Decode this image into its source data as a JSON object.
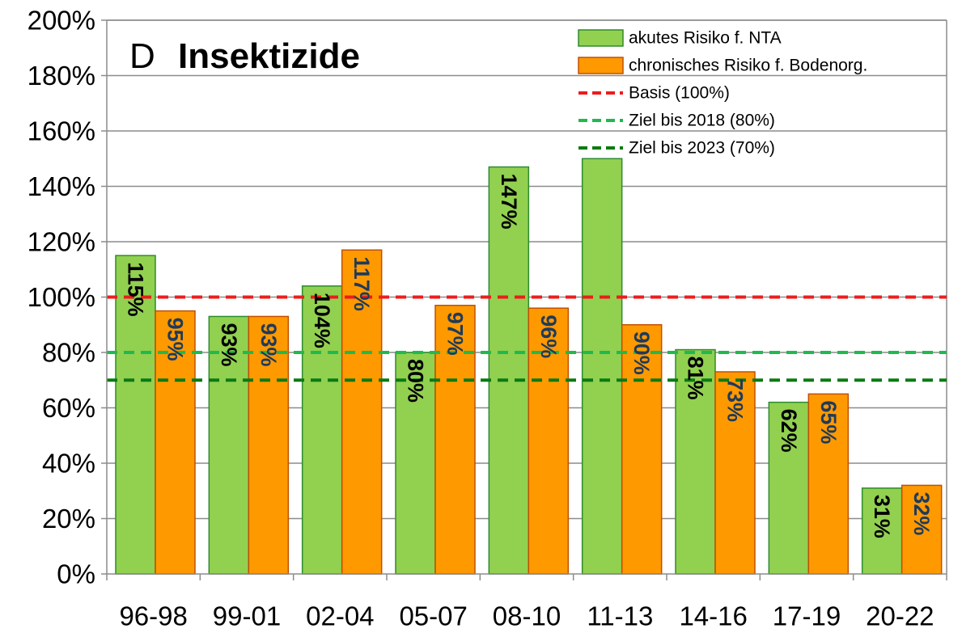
{
  "chart_data": {
    "type": "bar",
    "title_letter": "D",
    "title": "Insektizide",
    "categories": [
      "96-98",
      "99-01",
      "02-04",
      "05-07",
      "08-10",
      "11-13",
      "14-16",
      "17-19",
      "20-22"
    ],
    "series": [
      {
        "name": "akutes Risiko f. NTA",
        "color": "#92d050",
        "edge_color": "#2e8b2e",
        "values": [
          115,
          93,
          104,
          80,
          147,
          150,
          81,
          62,
          31
        ],
        "labels": [
          "115%",
          "93%",
          "104%",
          "80%",
          "147%",
          "",
          "81%",
          "62%",
          "31%"
        ]
      },
      {
        "name": "chronisches Risiko f. Bodenorg.",
        "color": "#ff9900",
        "edge_color": "#c05000",
        "values": [
          95,
          93,
          117,
          97,
          96,
          90,
          73,
          65,
          32
        ],
        "labels": [
          "95%",
          "93%",
          "117%",
          "97%",
          "96%",
          "90%",
          "73%",
          "65%",
          "32%"
        ]
      }
    ],
    "reference_lines": [
      {
        "name": "Basis (100%)",
        "value": 100,
        "color": "#ee1c1c"
      },
      {
        "name": "Ziel bis 2018 (80%)",
        "value": 80,
        "color": "#1fba4e"
      },
      {
        "name": "Ziel bis 2023 (70%)",
        "value": 70,
        "color": "#0a7a12"
      }
    ],
    "yaxis": {
      "min": 0,
      "max": 200,
      "ticks": [
        0,
        20,
        40,
        60,
        80,
        100,
        120,
        140,
        160,
        180,
        200
      ],
      "tick_labels": [
        "0%",
        "20%",
        "40%",
        "60%",
        "80%",
        "100%",
        "120%",
        "140%",
        "160%",
        "180%",
        "200%"
      ]
    },
    "grid": true,
    "legend_position": "top-right"
  }
}
